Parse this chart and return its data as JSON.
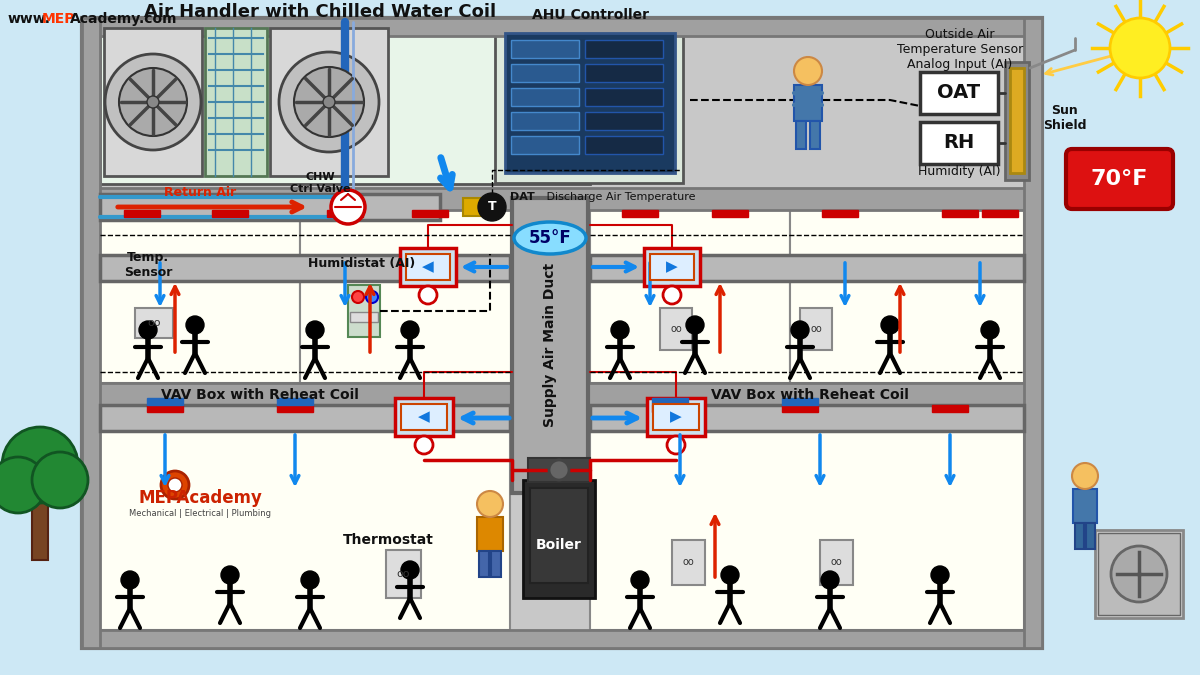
{
  "bg_color": "#cde8f5",
  "wall_color": "#a0a0a0",
  "wall_dark": "#888888",
  "ahu_bg": "#e8f5e9",
  "room_yellow": "#fffff0",
  "duct_gray": "#b0b0b0",
  "red": "#dd1111",
  "blue": "#1177dd",
  "website_mep": "#ff3300",
  "website_black": "#111111",
  "website_str": "www.MEPAcademy.com",
  "ahu_title": "Air Handler with Chilled Water Coil",
  "ahu_ctrl_label": "AHU Controller",
  "oat_title": "Outside Air\nTemperature Sensor\nAnalog Input (AI)",
  "oat_box": "OAT",
  "rh_box": "RH",
  "humidity_label": "Humidity (AI)",
  "sun_shield": "Sun\nShield",
  "temp_badge": "70°F",
  "return_air": "Return Air",
  "chw_valve": "CHW\nCtrl Valve",
  "dat_label": "DAT",
  "discharge_label": "Discharge Air Temperature",
  "supply_duct": "Supply Air Main Duct",
  "supply_temp": "55°F",
  "temp_sensor": "Temp.\nSensor",
  "humidistat": "Humidistat (AI)",
  "vav_left": "VAV Box with Reheat Coil",
  "vav_right": "VAV Box with Reheat Coil",
  "thermostat": "Thermostat",
  "boiler": "Boiler",
  "mep_logo": "MEPAcademy",
  "mep_tagline": "Mechanical | Electrical | Plumbing"
}
